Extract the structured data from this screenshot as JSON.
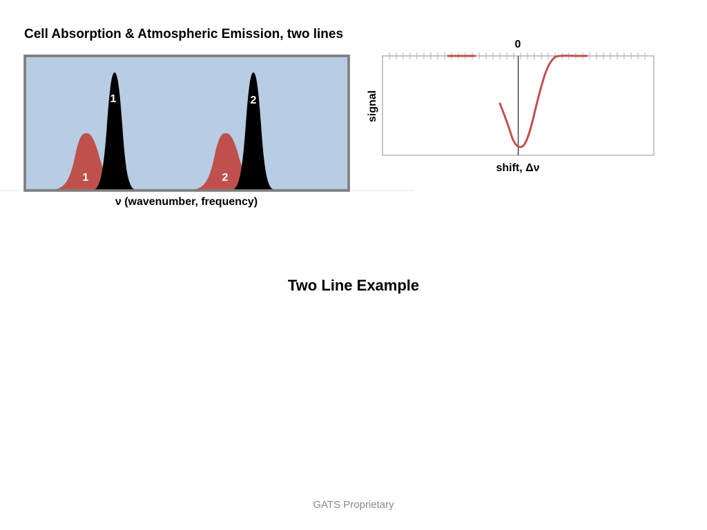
{
  "slide": {
    "left_panel": {
      "title": "Cell Absorption & Atmospheric Emission, two lines",
      "x_axis_label": "ν (wavenumber, frequency)",
      "background_color": "#b8cce4",
      "frame_color": "#7f7f7f",
      "lines": [
        {
          "cell_label": "1",
          "emission_label": "1"
        },
        {
          "cell_label": "2",
          "emission_label": "2"
        }
      ],
      "cell_absorption_color": "#000000",
      "atmospheric_emission_color": "#c0504d"
    },
    "right_panel": {
      "zero_label": "0",
      "y_axis_label": "signal",
      "x_axis_label": "shift, Δν",
      "curve_color": "#c0504d"
    },
    "center_title": "Two Line Example",
    "footer": "GATS Proprietary"
  }
}
